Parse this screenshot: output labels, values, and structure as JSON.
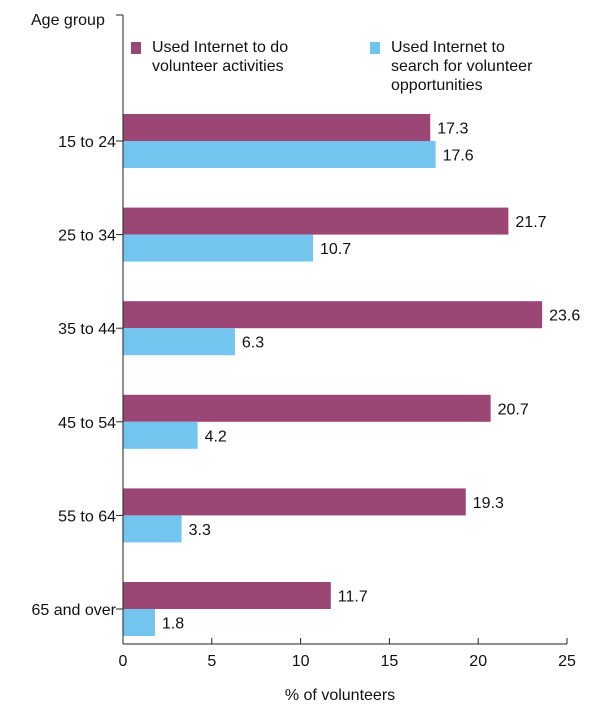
{
  "chart_data": {
    "type": "bar",
    "orientation": "horizontal",
    "y_axis_title": "Age group",
    "xlabel": "% of volunteers",
    "categories": [
      "15 to 24",
      "25 to 34",
      "35 to 44",
      "45 to 54",
      "55 to 64",
      "65 and over"
    ],
    "series": [
      {
        "name": "Used Internet to do volunteer activities",
        "legend_lines": [
          "Used Internet to do",
          "volunteer activities"
        ],
        "color": "#9b4675",
        "values": [
          17.3,
          21.7,
          23.6,
          20.7,
          19.3,
          11.7
        ]
      },
      {
        "name": "Used Internet to search for volunteer opportunities",
        "legend_lines": [
          "Used Internet to",
          "search for volunteer",
          "opportunities"
        ],
        "color": "#73c5ef",
        "values": [
          17.6,
          10.7,
          6.3,
          4.2,
          3.3,
          1.8
        ]
      }
    ],
    "xlim": [
      0,
      25
    ],
    "xticks": [
      0,
      5,
      10,
      15,
      20,
      25
    ],
    "grid": false,
    "legend_position": "top"
  }
}
